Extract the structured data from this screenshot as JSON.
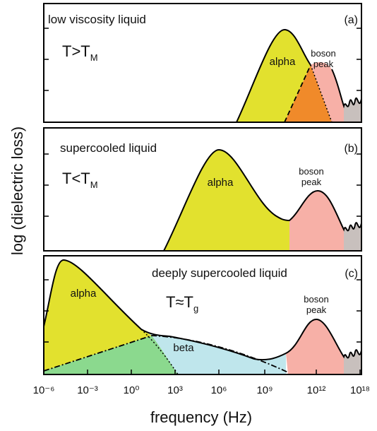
{
  "chart_data": {
    "type": "schematic",
    "xlabel": "frequency (Hz)",
    "ylabel": "log (dielectric loss)",
    "xticks": [
      {
        "value": 1e-06,
        "label": "10⁻⁶"
      },
      {
        "value": 0.001,
        "label": "10⁻³"
      },
      {
        "value": 1,
        "label": "10⁰"
      },
      {
        "value": 1000.0,
        "label": "10³"
      },
      {
        "value": 1000000.0,
        "label": "10⁶"
      },
      {
        "value": 1000000000.0,
        "label": "10⁹"
      },
      {
        "value": 1000000000000.0,
        "label": "10¹²"
      },
      {
        "value": 1e+18,
        "label": "10¹⁸"
      }
    ],
    "panels": [
      {
        "title": "low viscosity liquid",
        "tag": "(a)",
        "condition": "T>T",
        "condition_sub": "M",
        "alpha": "alpha",
        "boson": [
          "boson",
          "peak"
        ]
      },
      {
        "title": "supercooled liquid",
        "tag": "(b)",
        "condition": "T<T",
        "condition_sub": "M",
        "alpha": "alpha",
        "boson": [
          "boson",
          "peak"
        ]
      },
      {
        "title": "deeply supercooled liquid",
        "tag": "(c)",
        "condition": "T≈T",
        "condition_sub": "g",
        "alpha": "alpha",
        "beta": "beta",
        "boson": [
          "boson",
          "peak"
        ]
      }
    ]
  }
}
